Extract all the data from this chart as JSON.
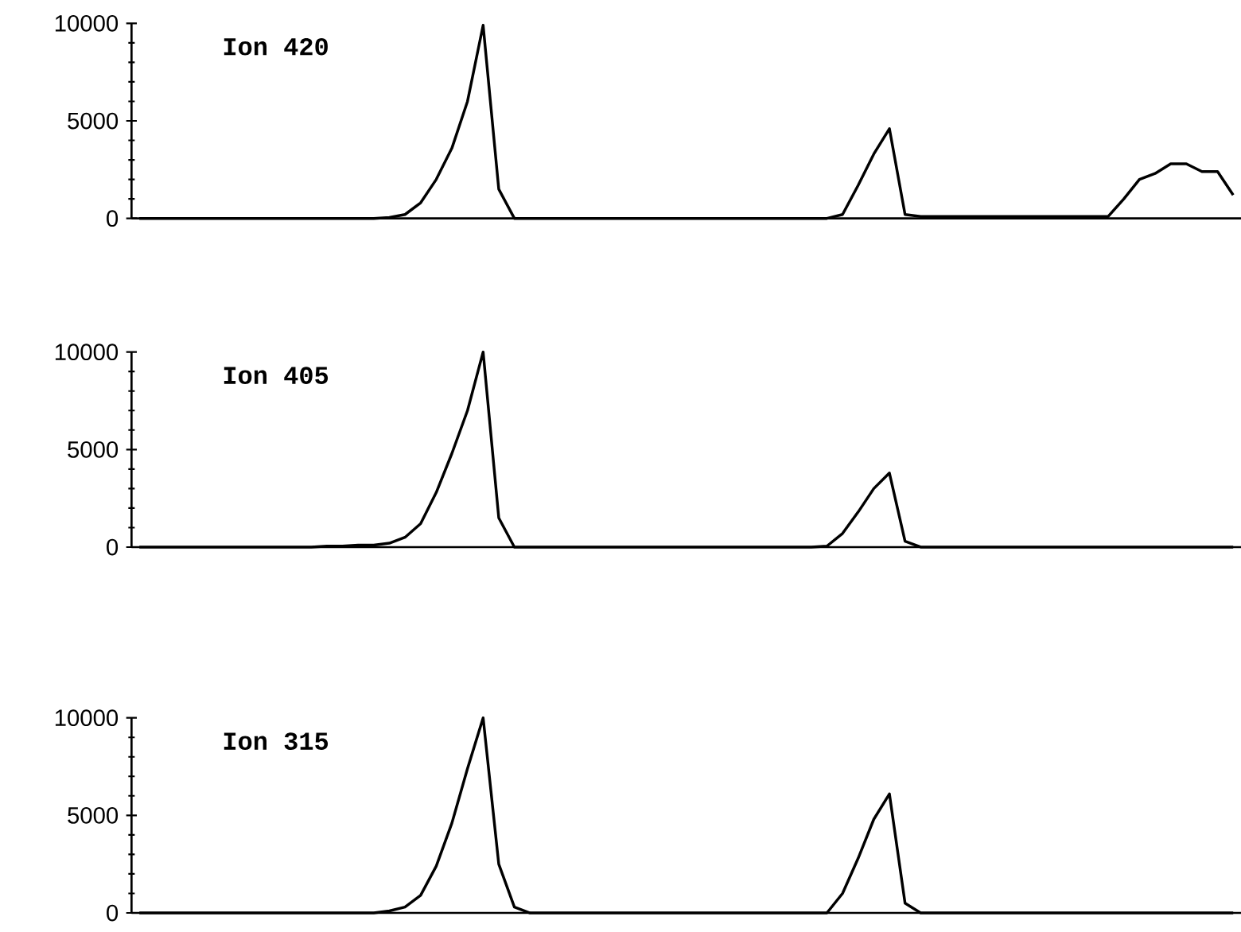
{
  "chart_data": [
    {
      "type": "line",
      "title": "Ion  420",
      "color": "#000000",
      "ylim": [
        0,
        10000
      ],
      "yticks": [
        0,
        5000,
        10000
      ],
      "tick_labels": "y",
      "categories": [
        null,
        null,
        null,
        null,
        null,
        null,
        null,
        null,
        null,
        null,
        null,
        null,
        null,
        null,
        null,
        null,
        null,
        null,
        null,
        null,
        null,
        null,
        null,
        null,
        null,
        null,
        null,
        null,
        null,
        null,
        null,
        null,
        null,
        null,
        null,
        null,
        null,
        null,
        null,
        null,
        null,
        null,
        null,
        null,
        null,
        null,
        null,
        null,
        null,
        null,
        null,
        null,
        null,
        null,
        null,
        null,
        null,
        null,
        null,
        null,
        null,
        null,
        null,
        null,
        null,
        null,
        null,
        null,
        null,
        null,
        null
      ],
      "values": [
        0,
        0,
        0,
        0,
        0,
        0,
        0,
        0,
        0,
        0,
        0,
        0,
        0,
        0,
        0,
        0,
        50,
        200,
        800,
        2000,
        3600,
        6000,
        9900,
        1500,
        0,
        0,
        0,
        0,
        0,
        0,
        0,
        0,
        0,
        0,
        0,
        0,
        0,
        0,
        0,
        0,
        0,
        0,
        0,
        0,
        0,
        200,
        1700,
        3300,
        4600,
        200,
        100,
        100,
        100,
        100,
        100,
        100,
        100,
        100,
        100,
        100,
        100,
        100,
        100,
        1000,
        2000,
        2300,
        2800,
        2800,
        2400,
        2400,
        1200
      ]
    },
    {
      "type": "line",
      "title": "Ion 405",
      "color": "#000000",
      "ylim": [
        0,
        10000
      ],
      "yticks": [
        0,
        5000,
        10000
      ],
      "tick_labels": "y",
      "categories": [
        null,
        null,
        null,
        null,
        null,
        null,
        null,
        null,
        null,
        null,
        null,
        null,
        null,
        null,
        null,
        null,
        null,
        null,
        null,
        null,
        null,
        null,
        null,
        null,
        null,
        null,
        null,
        null,
        null,
        null,
        null,
        null,
        null,
        null,
        null,
        null,
        null,
        null,
        null,
        null,
        null,
        null,
        null,
        null,
        null,
        null,
        null,
        null,
        null,
        null,
        null,
        null,
        null,
        null,
        null,
        null,
        null,
        null,
        null,
        null,
        null,
        null,
        null,
        null,
        null,
        null,
        null,
        null,
        null,
        null,
        null
      ],
      "values": [
        0,
        0,
        0,
        0,
        0,
        0,
        0,
        0,
        0,
        0,
        0,
        0,
        50,
        50,
        100,
        100,
        200,
        500,
        1200,
        2800,
        4800,
        7000,
        10000,
        1500,
        0,
        0,
        0,
        0,
        0,
        0,
        0,
        0,
        0,
        0,
        0,
        0,
        0,
        0,
        0,
        0,
        0,
        0,
        0,
        0,
        50,
        700,
        1800,
        3000,
        3800,
        300,
        0,
        0,
        0,
        0,
        0,
        0,
        0,
        0,
        0,
        0,
        0,
        0,
        0,
        0,
        0,
        0,
        0,
        0,
        0,
        0,
        0
      ]
    },
    {
      "type": "line",
      "title": "Ion  315",
      "color": "#000000",
      "ylim": [
        0,
        10000
      ],
      "yticks": [
        0,
        5000,
        10000
      ],
      "tick_labels": "y",
      "categories": [
        null,
        null,
        null,
        null,
        null,
        null,
        null,
        null,
        null,
        null,
        null,
        null,
        null,
        null,
        null,
        null,
        null,
        null,
        null,
        null,
        null,
        null,
        null,
        null,
        null,
        null,
        null,
        null,
        null,
        null,
        null,
        null,
        null,
        null,
        null,
        null,
        null,
        null,
        null,
        null,
        null,
        null,
        null,
        null,
        null,
        null,
        null,
        null,
        null,
        null,
        null,
        null,
        null,
        null,
        null,
        null,
        null,
        null,
        null,
        null,
        null,
        null,
        null,
        null,
        null,
        null,
        null,
        null,
        null,
        null,
        null
      ],
      "values": [
        0,
        0,
        0,
        0,
        0,
        0,
        0,
        0,
        0,
        0,
        0,
        0,
        0,
        0,
        0,
        0,
        100,
        300,
        900,
        2400,
        4600,
        7400,
        10000,
        2500,
        300,
        0,
        0,
        0,
        0,
        0,
        0,
        0,
        0,
        0,
        0,
        0,
        0,
        0,
        0,
        0,
        0,
        0,
        0,
        0,
        0,
        1000,
        2800,
        4800,
        6100,
        500,
        0,
        0,
        0,
        0,
        0,
        0,
        0,
        0,
        0,
        0,
        0,
        0,
        0,
        0,
        0,
        0,
        0,
        0,
        0,
        0,
        0
      ]
    }
  ]
}
